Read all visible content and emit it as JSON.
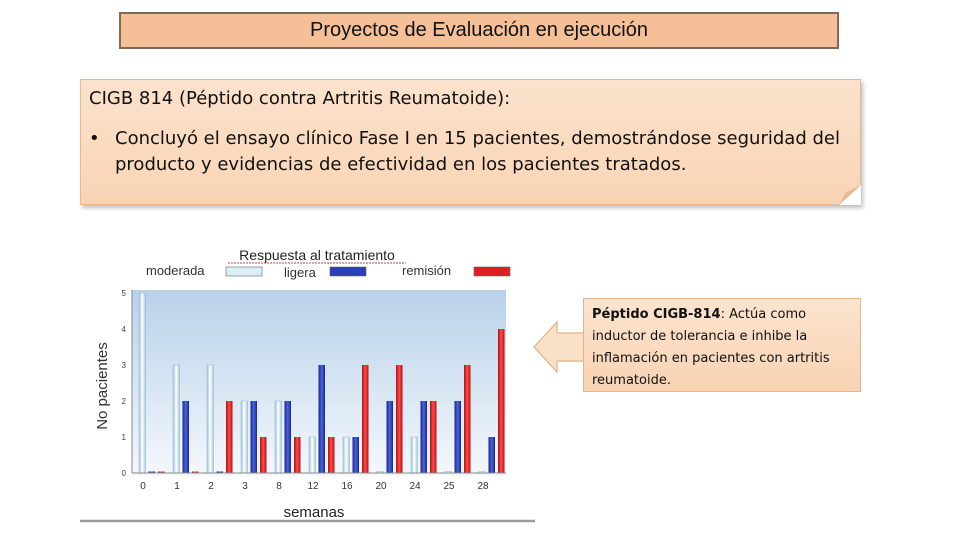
{
  "slide": {
    "title": "Proyectos de  Evaluación en ejecución",
    "heading": "CIGB 814 (Péptido contra Artritis Reumatoide):",
    "bullet": "Concluyó el ensayo clínico Fase I en 15 pacientes, demostrándose seguridad del producto y evidencias de efectividad en los pacientes tratados.",
    "callout_bold": "Péptido CIGB-814",
    "callout_text": ":  Actúa como inductor de tolerancia e inhibe la inflamación en pacientes con artritis reumatoide."
  },
  "chart_data": {
    "type": "bar",
    "title": "Respuesta al tratamiento",
    "xlabel": "semanas",
    "ylabel": "No pacientes",
    "categories": [
      "0",
      "1",
      "2",
      "3",
      "8",
      "12",
      "16",
      "20",
      "24",
      "25",
      "28"
    ],
    "yticks": [
      "0",
      "1",
      "2",
      "3",
      "4",
      "5"
    ],
    "ylim": [
      0,
      5
    ],
    "series": [
      {
        "name": "moderada",
        "color": "#dceef7",
        "values": [
          5,
          3,
          3,
          2,
          2,
          1,
          1,
          0,
          1,
          0,
          0
        ]
      },
      {
        "name": "ligera",
        "color": "#2a3fb5",
        "values": [
          0,
          2,
          0,
          2,
          2,
          3,
          1,
          2,
          2,
          2,
          1
        ]
      },
      {
        "name": "remisión",
        "color": "#e21d1d",
        "values": [
          0,
          0,
          2,
          1,
          1,
          1,
          3,
          3,
          2,
          3,
          4
        ]
      }
    ],
    "legend_position": "top"
  }
}
